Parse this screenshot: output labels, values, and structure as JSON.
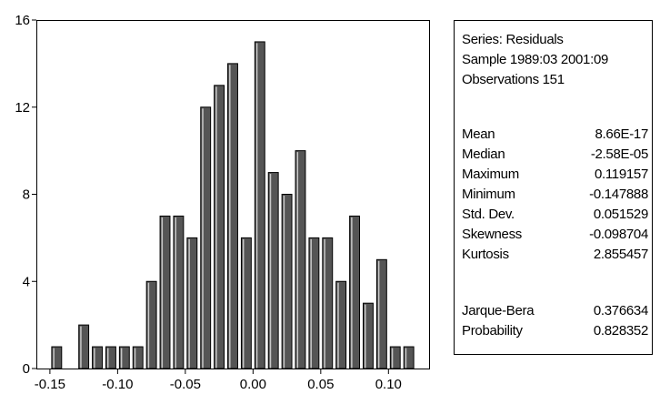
{
  "chart_data": {
    "type": "bar",
    "bin_width": 0.01,
    "bin_centers": [
      -0.145,
      -0.135,
      -0.125,
      -0.115,
      -0.105,
      -0.095,
      -0.085,
      -0.075,
      -0.065,
      -0.055,
      -0.045,
      -0.035,
      -0.025,
      -0.015,
      -0.005,
      0.005,
      0.015,
      0.025,
      0.035,
      0.045,
      0.055,
      0.065,
      0.075,
      0.085,
      0.095,
      0.105,
      0.115
    ],
    "values": [
      1,
      0,
      2,
      1,
      1,
      1,
      1,
      4,
      7,
      7,
      6,
      12,
      13,
      14,
      6,
      15,
      9,
      8,
      10,
      6,
      6,
      4,
      7,
      3,
      5,
      1,
      1
    ],
    "xlim": [
      -0.16,
      0.13
    ],
    "ylim": [
      0,
      16
    ],
    "x_ticks": [
      -0.15,
      -0.1,
      -0.05,
      0.0,
      0.05,
      0.1
    ],
    "x_tick_labels": [
      "-0.15",
      "-0.10",
      "-0.05",
      "0.00",
      "0.05",
      "0.10"
    ],
    "y_ticks": [
      0,
      4,
      8,
      12,
      16
    ],
    "y_tick_labels": [
      "0",
      "4",
      "8",
      "12",
      "16"
    ],
    "title": "",
    "xlabel": "",
    "ylabel": "",
    "grid": false,
    "bar_color": "#555555",
    "bar_highlight": "#c8c8c8",
    "bar_edge": "#000000"
  },
  "stats": {
    "header": [
      "Series: Residuals",
      "Sample 1989:03 2001:09",
      "Observations 151"
    ],
    "rows": [
      {
        "label": "Mean",
        "value": "8.66E-17"
      },
      {
        "label": "Median",
        "value": "-2.58E-05"
      },
      {
        "label": "Maximum",
        "value": "0.119157"
      },
      {
        "label": "Minimum",
        "value": "-0.147888"
      },
      {
        "label": "Std. Dev.",
        "value": "0.051529"
      },
      {
        "label": "Skewness",
        "value": "-0.098704"
      },
      {
        "label": "Kurtosis",
        "value": "2.855457"
      }
    ],
    "test_rows": [
      {
        "label": "Jarque-Bera",
        "value": "0.376634"
      },
      {
        "label": "Probability",
        "value": "0.828352"
      }
    ]
  }
}
